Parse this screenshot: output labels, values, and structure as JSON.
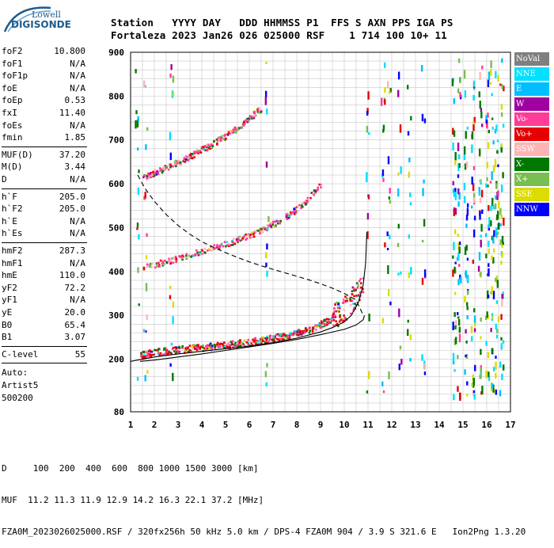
{
  "logo": {
    "line1": "Lowell",
    "line2": "DIGISONDE"
  },
  "header": {
    "line1": "Station   YYYY DAY   DDD HHMMSS P1  FFS S AXN PPS IGA PS",
    "line2": "Fortaleza 2023 Jan26 026 025000 RSF    1 714 100 10+ 11"
  },
  "parameters": {
    "group1": [
      {
        "name": "foF2",
        "value": "10.800"
      },
      {
        "name": "foF1",
        "value": "N/A"
      },
      {
        "name": "foF1p",
        "value": "N/A"
      },
      {
        "name": "foE",
        "value": "N/A"
      },
      {
        "name": "foEp",
        "value": "0.53"
      },
      {
        "name": "fxI",
        "value": "11.40"
      },
      {
        "name": "foEs",
        "value": "N/A"
      },
      {
        "name": "fmin",
        "value": "1.85"
      }
    ],
    "group2": [
      {
        "name": "MUF(D)",
        "value": "37.20"
      },
      {
        "name": "M(D)",
        "value": "3.44"
      },
      {
        "name": "D",
        "value": "N/A"
      }
    ],
    "group3": [
      {
        "name": "h`F",
        "value": "205.0"
      },
      {
        "name": "h`F2",
        "value": "205.0"
      },
      {
        "name": "h`E",
        "value": "N/A"
      },
      {
        "name": "h`Es",
        "value": "N/A"
      }
    ],
    "group4": [
      {
        "name": "hmF2",
        "value": "287.3"
      },
      {
        "name": "hmF1",
        "value": "N/A"
      },
      {
        "name": "hmE",
        "value": "110.0"
      },
      {
        "name": "yF2",
        "value": "72.2"
      },
      {
        "name": "yF1",
        "value": "N/A"
      },
      {
        "name": "yE",
        "value": "20.0"
      },
      {
        "name": "B0",
        "value": "65.4"
      },
      {
        "name": "B1",
        "value": "3.07"
      }
    ],
    "group5": [
      {
        "name": "C-level",
        "value": "55"
      }
    ],
    "autoscaling": [
      "Auto:",
      "Artist5",
      "500200"
    ]
  },
  "legend": [
    {
      "label": "NoVal",
      "bg": "#7f7f7f",
      "fg": "#ffffff"
    },
    {
      "label": "NNE",
      "bg": "#00e0ff",
      "fg": "#ffffff"
    },
    {
      "label": "E",
      "bg": "#00bfff",
      "fg": "#ffffff"
    },
    {
      "label": "W",
      "bg": "#a000a0",
      "fg": "#ffffff"
    },
    {
      "label": "Vo-",
      "bg": "#ff3c96",
      "fg": "#ffffff"
    },
    {
      "label": "Vo+",
      "bg": "#e60000",
      "fg": "#ffffff"
    },
    {
      "label": "SSW",
      "bg": "#ffb4b4",
      "fg": "#ffffff"
    },
    {
      "label": "X-",
      "bg": "#007800",
      "fg": "#ffffff"
    },
    {
      "label": "X+",
      "bg": "#78be50",
      "fg": "#ffffff"
    },
    {
      "label": "SSE",
      "bg": "#dcdc00",
      "fg": "#ffffff"
    },
    {
      "label": "NNW",
      "bg": "#0000ff",
      "fg": "#ffffff"
    }
  ],
  "footer": {
    "distance_row": "D     100  200  400  600  800 1000 1500 3000 [km]",
    "muf_row": "MUF  11.2 11.3 11.9 12.9 14.2 16.3 22.1 37.2 [MHz]",
    "info_row": "FZA0M_2023026025000.RSF / 320fx256h 50 kHz 5.0 km / DPS-4 FZA0M 904 / 3.9 S 321.6 E   Ion2Png 1.3.20"
  },
  "chart_data": {
    "type": "scatter",
    "title": "",
    "xlabel": "",
    "ylabel": "",
    "xlim": [
      1,
      17
    ],
    "ylim": [
      80,
      900
    ],
    "xticks": [
      1,
      2,
      3,
      4,
      5,
      6,
      7,
      8,
      9,
      10,
      11,
      12,
      13,
      14,
      15,
      16,
      17
    ],
    "yticks": [
      80,
      200,
      300,
      400,
      500,
      600,
      700,
      800,
      900
    ],
    "grid": true,
    "legend_position": "right",
    "traces": [
      {
        "name": "F-trace O-mode (1st hop)",
        "color": "#e60000",
        "x": [
          1.4,
          1.8,
          2.3,
          2.8,
          3.3,
          3.8,
          4.3,
          4.8,
          5.3,
          5.8,
          6.3,
          6.8,
          7.3,
          7.8,
          8.3,
          8.8,
          9.3,
          9.8,
          10.2,
          10.6,
          10.8
        ],
        "y": [
          210,
          215,
          220,
          222,
          225,
          228,
          230,
          233,
          236,
          240,
          243,
          248,
          253,
          258,
          265,
          275,
          290,
          310,
          330,
          360,
          390
        ]
      },
      {
        "name": "F-trace 2nd hop",
        "color": "#ff3c96",
        "x": [
          1.5,
          2.0,
          2.5,
          3.0,
          3.5,
          4.0,
          4.5,
          5.0,
          5.5,
          6.0,
          6.5,
          7.0,
          7.5,
          8.0,
          8.5,
          9.0
        ],
        "y": [
          410,
          418,
          425,
          432,
          440,
          448,
          456,
          465,
          474,
          484,
          496,
          510,
          526,
          545,
          570,
          600
        ]
      },
      {
        "name": "F-trace 3rd hop",
        "color": "#ff3c96",
        "x": [
          1.5,
          2.0,
          2.5,
          3.0,
          3.5,
          4.0,
          4.5,
          5.0,
          5.5,
          6.0,
          6.5
        ],
        "y": [
          615,
          628,
          640,
          652,
          665,
          680,
          695,
          712,
          730,
          752,
          775
        ]
      }
    ],
    "profile_curves": [
      {
        "name": "O-trace fit",
        "style": "solid",
        "x": [
          1.0,
          2.0,
          3.0,
          4.0,
          5.0,
          6.0,
          7.0,
          8.0,
          9.0,
          9.5,
          10.0,
          10.3,
          10.6,
          10.8,
          10.9,
          10.95
        ],
        "y": [
          195,
          205,
          212,
          218,
          224,
          230,
          238,
          248,
          262,
          272,
          285,
          300,
          330,
          370,
          420,
          490
        ]
      },
      {
        "name": "Lower trace",
        "style": "solid",
        "x": [
          1.4,
          2.0,
          3.0,
          4.0,
          5.0,
          6.0,
          7.0,
          8.0,
          9.0,
          10.0,
          10.5,
          10.8,
          10.85
        ],
        "y": [
          195,
          198,
          205,
          212,
          220,
          228,
          236,
          245,
          256,
          268,
          278,
          290,
          300
        ]
      },
      {
        "name": "Electron density profile",
        "style": "dashed",
        "x": [
          1.3,
          1.6,
          2.0,
          2.5,
          3.0,
          3.5,
          4.0,
          4.5,
          5.0,
          5.5,
          6.0,
          6.5,
          7.0,
          7.5,
          8.0,
          8.5,
          9.0,
          9.5,
          10.0,
          10.5,
          10.8
        ],
        "y": [
          620,
          590,
          560,
          530,
          505,
          485,
          468,
          455,
          443,
          432,
          422,
          413,
          405,
          397,
          389,
          381,
          372,
          362,
          350,
          335,
          300
        ]
      }
    ]
  }
}
